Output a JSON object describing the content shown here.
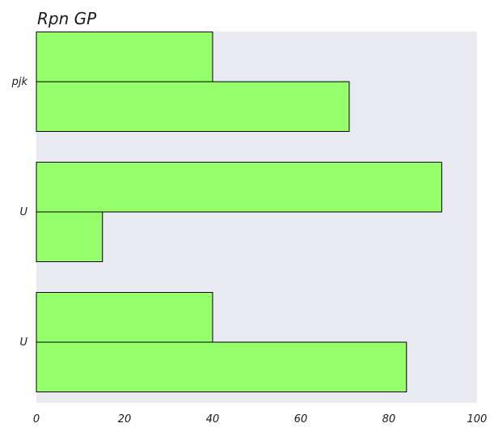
{
  "chart_data": {
    "type": "bar",
    "orientation": "horizontal",
    "title": "Rpn GP",
    "xlabel": "",
    "ylabel": "",
    "categories": [
      "pjk",
      "U",
      "U"
    ],
    "series": [
      {
        "values": [
          40,
          92,
          40
        ]
      },
      {
        "values": [
          71,
          15,
          84
        ]
      }
    ],
    "xlim": [
      0,
      100
    ],
    "xticks": [
      0,
      20,
      40,
      60,
      80,
      100
    ],
    "grid": false,
    "legend": "none",
    "colors": {
      "bar_fill": "#94ff6a",
      "bar_edge": "#000000",
      "plot_background": "#e9e9f2"
    }
  }
}
